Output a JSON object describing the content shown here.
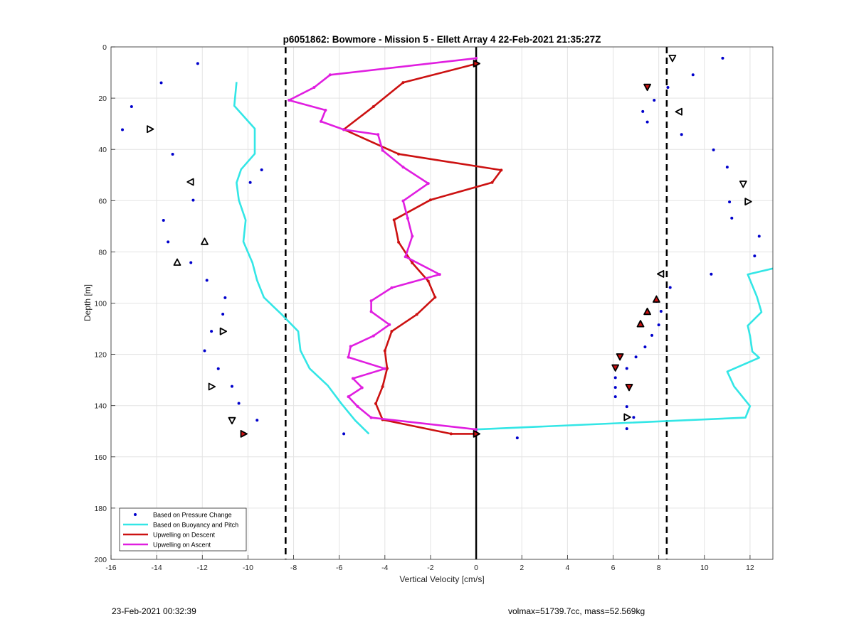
{
  "chart_data": {
    "type": "scatter",
    "title": "p6051862: Bowmore - Mission 5 - Ellett Array 4 22-Feb-2021 21:35:27Z",
    "xlabel": "Vertical Velocity [cm/s]",
    "ylabel": "Depth [m]",
    "xlim": [
      -16,
      13
    ],
    "ylim": [
      0,
      200
    ],
    "y_reversed": true,
    "xticks": [
      -16,
      -14,
      -12,
      -10,
      -8,
      -6,
      -4,
      -2,
      0,
      2,
      4,
      6,
      8,
      10,
      12
    ],
    "yticks": [
      0,
      20,
      40,
      60,
      80,
      100,
      120,
      140,
      160,
      180,
      200
    ],
    "grid": true,
    "legend_position": "bottom-left",
    "reference_lines": {
      "zero": 0,
      "dashed": [
        -8.35,
        8.35
      ]
    },
    "series": [
      {
        "name": "Based on Pressure Change",
        "kind": "points",
        "color": "#0000cc",
        "points": [
          [
            -12.2,
            6.5
          ],
          [
            -13.8,
            14
          ],
          [
            -15.1,
            23.3
          ],
          [
            -15.5,
            32.3
          ],
          [
            -13.3,
            41.9
          ],
          [
            -9.4,
            48
          ],
          [
            -9.9,
            52.9
          ],
          [
            -12.4,
            59.8
          ],
          [
            -13.7,
            67.7
          ],
          [
            -13.5,
            76.1
          ],
          [
            -12.5,
            84.2
          ],
          [
            -11.8,
            91.1
          ],
          [
            -11,
            97.9
          ],
          [
            -11.1,
            104.3
          ],
          [
            -11.6,
            111
          ],
          [
            -11.9,
            118.6
          ],
          [
            -11.3,
            125.6
          ],
          [
            -10.7,
            132.5
          ],
          [
            -10.4,
            139.1
          ],
          [
            -9.6,
            145.7
          ],
          [
            -5.8,
            151
          ],
          [
            1.8,
            152.6
          ],
          [
            10.8,
            4.4
          ],
          [
            9.5,
            10.9
          ],
          [
            8.4,
            15.8
          ],
          [
            7.8,
            20.8
          ],
          [
            7.3,
            25.2
          ],
          [
            7.5,
            29.3
          ],
          [
            9,
            34.2
          ],
          [
            10.4,
            40.2
          ],
          [
            11,
            46.9
          ],
          [
            11.7,
            53.4
          ],
          [
            11.1,
            60.5
          ],
          [
            11.2,
            66.8
          ],
          [
            12.4,
            73.9
          ],
          [
            12.2,
            81.6
          ],
          [
            10.3,
            88.7
          ],
          [
            8.5,
            93.9
          ],
          [
            7.9,
            99.3
          ],
          [
            8.1,
            103.2
          ],
          [
            8,
            108.5
          ],
          [
            7.7,
            112.6
          ],
          [
            7.4,
            117.1
          ],
          [
            7,
            121
          ],
          [
            6.6,
            125.5
          ],
          [
            6.1,
            129.1
          ],
          [
            6.1,
            132.9
          ],
          [
            6.1,
            136.5
          ],
          [
            6.6,
            140.4
          ],
          [
            6.9,
            144.6
          ],
          [
            6.6,
            149
          ]
        ]
      },
      {
        "name": "Based on Buoyancy and Pitch",
        "kind": "line",
        "color": "#33e6e6",
        "segments": [
          [
            [
              -10.5,
              13.7
            ],
            [
              -10.6,
              23
            ],
            [
              -9.7,
              31.9
            ],
            [
              -9.7,
              41.7
            ],
            [
              -10.3,
              47.8
            ],
            [
              -10.5,
              53
            ],
            [
              -10.4,
              59.8
            ],
            [
              -10.1,
              67.6
            ],
            [
              -10.2,
              76
            ],
            [
              -9.8,
              84.3
            ],
            [
              -9.6,
              91.1
            ],
            [
              -9.3,
              97.8
            ],
            [
              -8.5,
              104.6
            ],
            [
              -7.8,
              111
            ],
            [
              -7.7,
              118.5
            ],
            [
              -7.3,
              125.5
            ],
            [
              -6.5,
              132.2
            ],
            [
              -5.9,
              139.3
            ],
            [
              -5.3,
              145.8
            ],
            [
              -4.7,
              151
            ]
          ],
          [
            [
              13,
              86.5
            ],
            [
              11.9,
              88.8
            ],
            [
              12.3,
              97.5
            ],
            [
              12.5,
              103.5
            ],
            [
              11.9,
              108.8
            ],
            [
              12,
              112.8
            ],
            [
              12.1,
              118.9
            ],
            [
              12.4,
              121.3
            ],
            [
              11,
              126.7
            ],
            [
              11.3,
              132.5
            ],
            [
              12,
              140.2
            ],
            [
              11.8,
              144.7
            ],
            [
              0,
              149.3
            ]
          ]
        ]
      },
      {
        "name": "Upwelling on Descent",
        "kind": "line",
        "color": "#cc1111",
        "points": [
          [
            0,
            6.6
          ],
          [
            -3.2,
            13.9
          ],
          [
            -4.5,
            23.3
          ],
          [
            -5.8,
            32.2
          ],
          [
            -3.4,
            41.8
          ],
          [
            1.1,
            48.1
          ],
          [
            0.7,
            52.9
          ],
          [
            -2,
            59.7
          ],
          [
            -3.6,
            67.5
          ],
          [
            -3.4,
            76.2
          ],
          [
            -2.8,
            84.3
          ],
          [
            -2.1,
            91.4
          ],
          [
            -1.8,
            97.7
          ],
          [
            -2.6,
            104.4
          ],
          [
            -3.7,
            111
          ],
          [
            -4,
            118.6
          ],
          [
            -3.9,
            125.5
          ],
          [
            -4.1,
            132.6
          ],
          [
            -4.4,
            139.2
          ],
          [
            -4.1,
            145.5
          ],
          [
            -1.1,
            151
          ],
          [
            0,
            151
          ]
        ]
      },
      {
        "name": "Upwelling on Ascent",
        "kind": "line",
        "color": "#e01ee0",
        "points": [
          [
            0,
            4.4
          ],
          [
            -6.4,
            10.9
          ],
          [
            -7.1,
            15.8
          ],
          [
            -8.2,
            20.8
          ],
          [
            -6.6,
            24.7
          ],
          [
            -6.8,
            29.1
          ],
          [
            -5.8,
            32.3
          ],
          [
            -4.3,
            34.2
          ],
          [
            -4.1,
            40.4
          ],
          [
            -3.2,
            46.9
          ],
          [
            -2.1,
            53.3
          ],
          [
            -3.2,
            60.1
          ],
          [
            -3,
            66.9
          ],
          [
            -2.8,
            73.9
          ],
          [
            -3.1,
            81.9
          ],
          [
            -1.6,
            88.8
          ],
          [
            -3.7,
            94
          ],
          [
            -4.6,
            99.1
          ],
          [
            -4.6,
            103.3
          ],
          [
            -3.8,
            108.4
          ],
          [
            -4.5,
            112.8
          ],
          [
            -5.5,
            116.9
          ],
          [
            -5.6,
            121.1
          ],
          [
            -4,
            125.6
          ],
          [
            -5.4,
            129.4
          ],
          [
            -5,
            133
          ],
          [
            -5.6,
            136.5
          ],
          [
            -5.2,
            140.3
          ],
          [
            -4.6,
            144.7
          ],
          [
            0,
            149.3
          ]
        ]
      }
    ],
    "markers": [
      {
        "x": 0,
        "y": 6.5,
        "dir": "right",
        "filled": true
      },
      {
        "x": -10.2,
        "y": 151,
        "dir": "right",
        "filled": true
      },
      {
        "x": 0,
        "y": 151,
        "dir": "right",
        "filled": true
      },
      {
        "x": 8.6,
        "y": 4.3,
        "dir": "down",
        "filled": false
      },
      {
        "x": 7.5,
        "y": 15.6,
        "dir": "down",
        "filled": true
      },
      {
        "x": 8.9,
        "y": 25.3,
        "dir": "left",
        "filled": false
      },
      {
        "x": -14.3,
        "y": 32.1,
        "dir": "right",
        "filled": false
      },
      {
        "x": -12.5,
        "y": 52.7,
        "dir": "left",
        "filled": false
      },
      {
        "x": 11.7,
        "y": 53.4,
        "dir": "down",
        "filled": false
      },
      {
        "x": 11.9,
        "y": 60.4,
        "dir": "right",
        "filled": false
      },
      {
        "x": -11.9,
        "y": 76.1,
        "dir": "up",
        "filled": false
      },
      {
        "x": -13.1,
        "y": 84.2,
        "dir": "up",
        "filled": false
      },
      {
        "x": 8.1,
        "y": 88.6,
        "dir": "left",
        "filled": false
      },
      {
        "x": 7.9,
        "y": 98.6,
        "dir": "up",
        "filled": true
      },
      {
        "x": 7.5,
        "y": 103.4,
        "dir": "up",
        "filled": true
      },
      {
        "x": 7.2,
        "y": 108.2,
        "dir": "up",
        "filled": true
      },
      {
        "x": -11.1,
        "y": 111,
        "dir": "right",
        "filled": false
      },
      {
        "x": 6.3,
        "y": 120.8,
        "dir": "down",
        "filled": true
      },
      {
        "x": 6.1,
        "y": 125.1,
        "dir": "down",
        "filled": true
      },
      {
        "x": -11.6,
        "y": 132.6,
        "dir": "right",
        "filled": false
      },
      {
        "x": 6.7,
        "y": 132.7,
        "dir": "down",
        "filled": true
      },
      {
        "x": 6.6,
        "y": 144.5,
        "dir": "right",
        "filled": false
      },
      {
        "x": -10.7,
        "y": 145.7,
        "dir": "down",
        "filled": false
      }
    ]
  },
  "footer": {
    "timestamp": "23-Feb-2021 00:32:39",
    "params": "volmax=51739.7cc, mass=52.569kg"
  }
}
